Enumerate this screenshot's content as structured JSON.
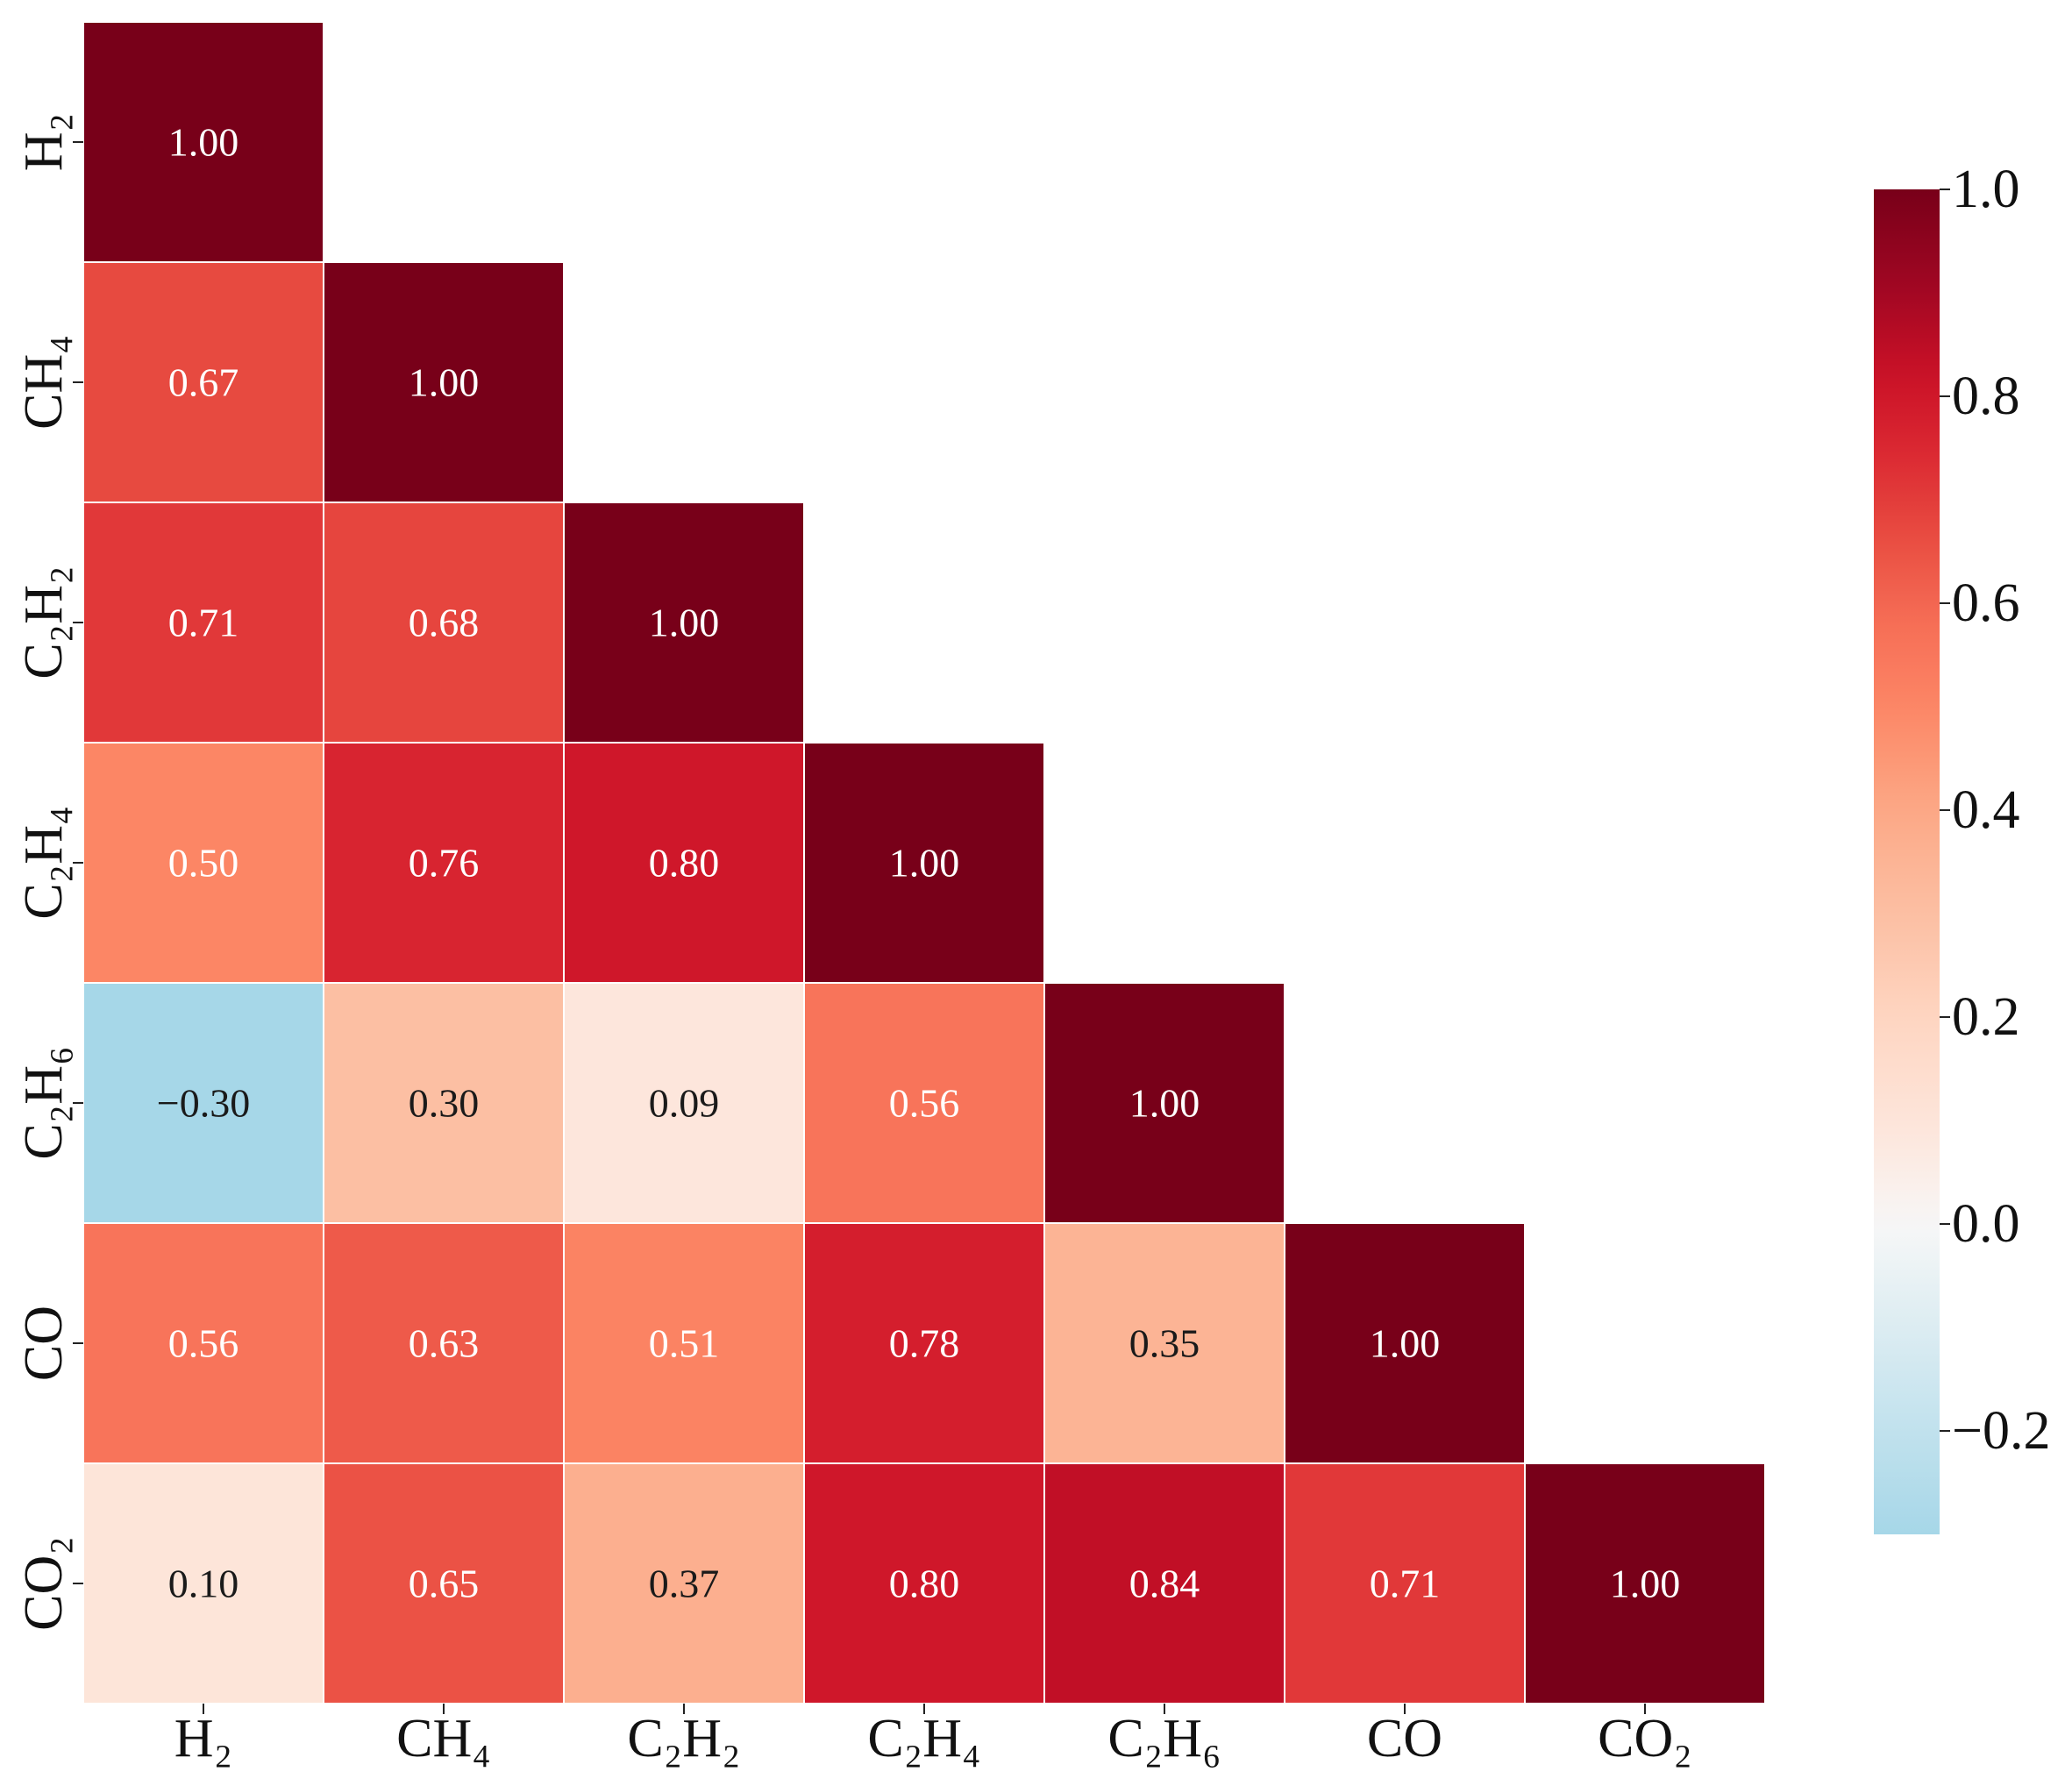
{
  "chart_data": {
    "type": "heatmap",
    "title": "",
    "xlabel": "",
    "ylabel": "",
    "variables": [
      "H₂",
      "CH₄",
      "C₂H₂",
      "C₂H₄",
      "C₂H₆",
      "CO",
      "CO₂"
    ],
    "x_tick_labels": [
      "H₂",
      "CH₄",
      "C₂H₂",
      "C₂H₄",
      "C₂H₆",
      "CO",
      "CO₂"
    ],
    "y_tick_labels": [
      "H₂",
      "CH₄",
      "C₂H₂",
      "C₂H₄",
      "C₂H₆",
      "CO",
      "CO₂"
    ],
    "mask": "upper-triangle",
    "values": [
      [
        1.0
      ],
      [
        0.67,
        1.0
      ],
      [
        0.71,
        0.68,
        1.0
      ],
      [
        0.5,
        0.76,
        0.8,
        1.0
      ],
      [
        -0.3,
        0.3,
        0.09,
        0.56,
        1.0
      ],
      [
        0.56,
        0.63,
        0.51,
        0.78,
        0.35,
        1.0
      ],
      [
        0.1,
        0.65,
        0.37,
        0.8,
        0.84,
        0.71,
        1.0
      ]
    ],
    "cell_labels": [
      [
        "1.00"
      ],
      [
        "0.67",
        "1.00"
      ],
      [
        "0.71",
        "0.68",
        "1.00"
      ],
      [
        "0.50",
        "0.76",
        "0.80",
        "1.00"
      ],
      [
        "−0.30",
        "0.30",
        "0.09",
        "0.56",
        "1.00"
      ],
      [
        "0.56",
        "0.63",
        "0.51",
        "0.78",
        "0.35",
        "1.00"
      ],
      [
        "0.10",
        "0.65",
        "0.37",
        "0.80",
        "0.84",
        "0.71",
        "1.00"
      ]
    ],
    "colorbar": {
      "range": [
        -0.3,
        1.0
      ],
      "ticks": [
        1.0,
        0.8,
        0.6,
        0.4,
        0.2,
        0.0,
        -0.2
      ],
      "tick_labels": [
        "1.0",
        "0.8",
        "0.6",
        "0.4",
        "0.2",
        "0.0",
        "−0.2"
      ],
      "position": "right"
    },
    "colors": {
      "negative_end": "#a6d7e8",
      "zero": "#f7f7f7",
      "positive_end": "#780019",
      "cell_border": "#ffffff",
      "dark_text": "#1a1a1a",
      "light_text": "#ffffff"
    }
  }
}
